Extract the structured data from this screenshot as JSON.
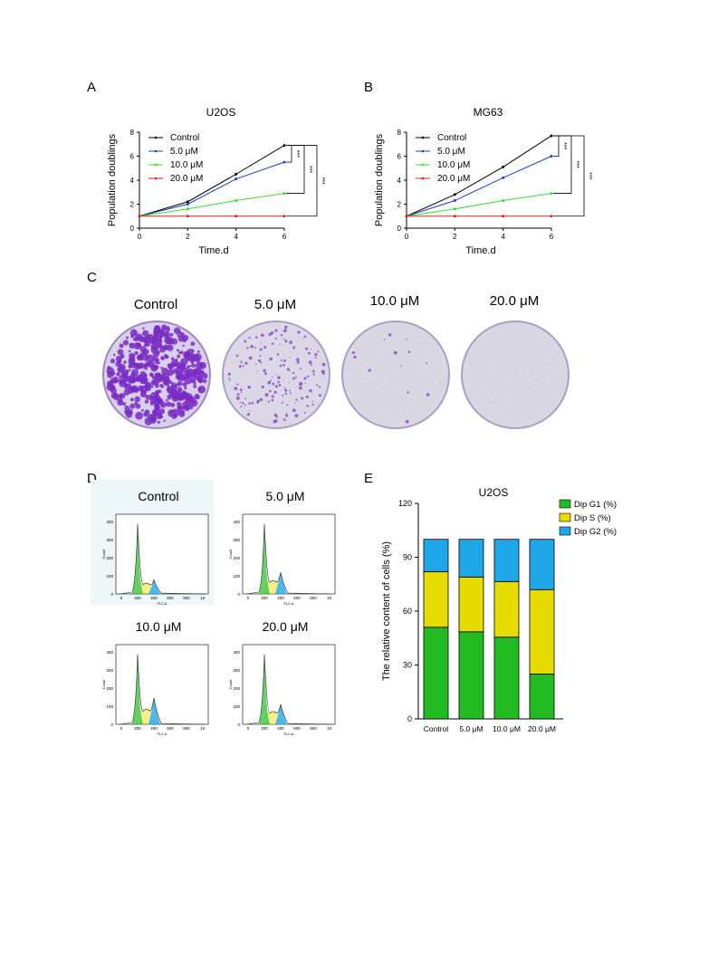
{
  "panels": {
    "A": "A",
    "B": "B",
    "C": "C",
    "D": "D",
    "E": "E"
  },
  "colors": {
    "control": "#000000",
    "c5": "#1f3fbf",
    "c10": "#33dd33",
    "c20": "#dd2222",
    "g1": "#22bb22",
    "s": "#e6dc00",
    "g2": "#1ea8ea",
    "err": "#cc2222"
  },
  "chart_data": [
    {
      "type": "line",
      "title": "U2OS",
      "xlabel": "Time.d",
      "ylabel": "Population doublings",
      "xlim": [
        0,
        6
      ],
      "ylim": [
        0,
        8
      ],
      "xticks": [
        "0",
        "2",
        "4",
        "6"
      ],
      "yticks": [
        "0",
        "2",
        "4",
        "6",
        "8"
      ],
      "x": [
        0,
        2,
        4,
        6
      ],
      "series": [
        {
          "name": "Control",
          "values": [
            1.0,
            2.2,
            4.5,
            6.9
          ]
        },
        {
          "name": "5.0 μM",
          "values": [
            1.0,
            2.0,
            4.1,
            5.5
          ]
        },
        {
          "name": "10.0 μM",
          "values": [
            1.0,
            1.6,
            2.3,
            2.9
          ]
        },
        {
          "name": "20.0 μM",
          "values": [
            1.0,
            1.0,
            1.0,
            1.0
          ]
        }
      ],
      "significance": [
        "***",
        "***",
        "***"
      ]
    },
    {
      "type": "line",
      "title": "MG63",
      "xlabel": "Time.d",
      "ylabel": "Population doublings",
      "xlim": [
        0,
        6
      ],
      "ylim": [
        0,
        8
      ],
      "xticks": [
        "0",
        "2",
        "4",
        "6"
      ],
      "yticks": [
        "0",
        "2",
        "4",
        "6",
        "8"
      ],
      "x": [
        0,
        2,
        4,
        6
      ],
      "series": [
        {
          "name": "Control",
          "values": [
            1.0,
            2.8,
            5.1,
            7.7
          ]
        },
        {
          "name": "5.0 μM",
          "values": [
            1.0,
            2.3,
            4.2,
            6.0
          ]
        },
        {
          "name": "10.0 μM",
          "values": [
            1.0,
            1.6,
            2.3,
            2.9
          ]
        },
        {
          "name": "20.0 μM",
          "values": [
            1.0,
            1.0,
            1.0,
            1.0
          ]
        }
      ],
      "significance": [
        "***",
        "***",
        "***"
      ]
    },
    {
      "type": "bar",
      "stacked": true,
      "title": "U2OS",
      "ylabel": "The relative content of cells (%)",
      "ylim": [
        0,
        120
      ],
      "yticks": [
        "0",
        "30",
        "60",
        "90",
        "120"
      ],
      "categories": [
        "Control",
        "5.0 μM",
        "10.0 μM",
        "20.0 μM"
      ],
      "series": [
        {
          "name": "Dip G1 (%)",
          "values": [
            51,
            48.5,
            45.5,
            25
          ]
        },
        {
          "name": "Dip S (%)",
          "values": [
            31,
            30.5,
            31,
            47
          ]
        },
        {
          "name": "Dip G2 (%)",
          "values": [
            18,
            21,
            23.5,
            28
          ]
        }
      ],
      "legend": "top-right"
    }
  ],
  "dishes": {
    "labels": [
      "Control",
      "5.0 μM",
      "10.0 μM",
      "20.0 μM"
    ],
    "colony_density": [
      1.0,
      0.35,
      0.03,
      0.0
    ]
  },
  "flow": {
    "titles": [
      "Control",
      "5.0 μM",
      "10.0 μM",
      "20.0 μM"
    ],
    "g2_peak_level": [
      0.18,
      0.27,
      0.33,
      0.25
    ],
    "yticks": [
      "0",
      "100",
      "200",
      "300",
      "400"
    ],
    "xticks": [
      "0",
      "200",
      "400",
      "600",
      "800",
      "1K"
    ],
    "xlabel": "FL2-A",
    "ylabel": "Count"
  }
}
